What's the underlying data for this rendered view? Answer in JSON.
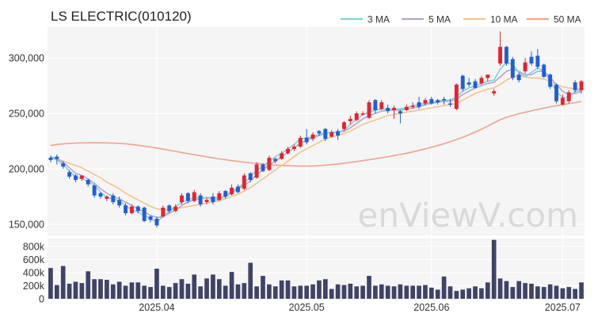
{
  "chart_data": {
    "type": "candlestick",
    "title": "LS ELECTRIC(010120)",
    "watermark": "enViewV.com",
    "legend": [
      {
        "label": "3 MA",
        "color": "#7fd3d4"
      },
      {
        "label": "5 MA",
        "color": "#b6a4cc"
      },
      {
        "label": "10 MA",
        "color": "#f2c48d"
      },
      {
        "label": "50 MA",
        "color": "#f2a28e"
      }
    ],
    "legend_position": "top-right",
    "colors": {
      "up": "#e8212e",
      "down": "#1f5fd6",
      "volume": "#3f4466",
      "plot_bg": "#f5f5f5"
    },
    "price_axis": {
      "ticks": [
        150000,
        200000,
        250000,
        300000
      ],
      "tick_labels": [
        "150,000",
        "200,000",
        "250,000",
        "300,000"
      ],
      "range": [
        140000,
        328000
      ]
    },
    "volume_axis": {
      "ticks": [
        0,
        200000,
        400000,
        600000,
        800000
      ],
      "tick_labels": [
        "0",
        "200k",
        "400k",
        "600k",
        "800k"
      ],
      "range": [
        0,
        920000
      ]
    },
    "x_axis": {
      "tick_labels": [
        "2025.04",
        "2025.05",
        "2025.06",
        "2025.07"
      ],
      "tick_sessions": [
        17,
        41,
        61,
        82
      ]
    },
    "sessions": 86,
    "candles": [
      [
        210000,
        212000,
        208000,
        206000
      ],
      [
        211000,
        213000,
        209000,
        204000
      ],
      [
        205000,
        207000,
        202000,
        200000
      ],
      [
        197000,
        199000,
        193000,
        191000
      ],
      [
        194000,
        195000,
        190000,
        188000
      ],
      [
        191000,
        192000,
        194000,
        189000
      ],
      [
        190000,
        191000,
        186000,
        184000
      ],
      [
        185000,
        186000,
        176000,
        174000
      ],
      [
        178000,
        179000,
        175000,
        173000
      ],
      [
        173000,
        176000,
        175000,
        171000
      ],
      [
        176000,
        178000,
        170000,
        168000
      ],
      [
        172000,
        175000,
        167000,
        165000
      ],
      [
        167000,
        169000,
        160000,
        158000
      ],
      [
        160000,
        168000,
        166000,
        159000
      ],
      [
        166000,
        167000,
        162000,
        160000
      ],
      [
        165000,
        166000,
        153000,
        152000
      ],
      [
        157000,
        158000,
        154000,
        152000
      ],
      [
        155000,
        157000,
        149000,
        147000
      ],
      [
        157000,
        167000,
        165000,
        156000
      ],
      [
        167000,
        168000,
        162000,
        160000
      ],
      [
        162000,
        168000,
        166000,
        161000
      ],
      [
        170000,
        178000,
        176000,
        168000
      ],
      [
        178000,
        179000,
        171000,
        169000
      ],
      [
        171000,
        181000,
        179000,
        170000
      ],
      [
        176000,
        178000,
        168000,
        166000
      ],
      [
        170000,
        174000,
        172000,
        168000
      ],
      [
        175000,
        178000,
        170000,
        168000
      ],
      [
        172000,
        180000,
        178000,
        171000
      ],
      [
        180000,
        181000,
        175000,
        173000
      ],
      [
        177000,
        186000,
        183000,
        176000
      ],
      [
        184000,
        186000,
        179000,
        178000
      ],
      [
        182000,
        196000,
        194000,
        181000
      ],
      [
        196000,
        197000,
        190000,
        188000
      ],
      [
        192000,
        206000,
        204000,
        191000
      ],
      [
        204000,
        205000,
        198000,
        197000
      ],
      [
        199000,
        212000,
        210000,
        198000
      ],
      [
        209000,
        210000,
        207000,
        205000
      ],
      [
        209000,
        216000,
        214000,
        208000
      ],
      [
        214000,
        220000,
        218000,
        213000
      ],
      [
        218000,
        222000,
        220000,
        216000
      ],
      [
        220000,
        230000,
        228000,
        219000
      ],
      [
        228000,
        236000,
        224000,
        222000
      ],
      [
        227000,
        233000,
        231000,
        225000
      ],
      [
        234000,
        235000,
        232000,
        230000
      ],
      [
        236000,
        237000,
        227000,
        225000
      ],
      [
        229000,
        235000,
        233000,
        228000
      ],
      [
        234000,
        236000,
        230000,
        226000
      ],
      [
        236000,
        243000,
        242000,
        234000
      ],
      [
        243000,
        248000,
        245000,
        240000
      ],
      [
        244000,
        252000,
        250000,
        243000
      ],
      [
        249000,
        252000,
        250000,
        248000
      ],
      [
        246000,
        262000,
        260000,
        245000
      ],
      [
        262000,
        263000,
        253000,
        250000
      ],
      [
        254000,
        262000,
        260000,
        253000
      ],
      [
        255000,
        258000,
        252000,
        250000
      ],
      [
        253000,
        257000,
        255000,
        245000
      ],
      [
        252000,
        253000,
        250000,
        241000
      ],
      [
        253000,
        258000,
        256000,
        252000
      ],
      [
        256000,
        260000,
        257000,
        254000
      ],
      [
        260000,
        265000,
        256000,
        254000
      ],
      [
        259000,
        264000,
        262000,
        257000
      ],
      [
        263000,
        265000,
        259000,
        258000
      ],
      [
        262000,
        263000,
        260000,
        258000
      ],
      [
        263000,
        265000,
        262000,
        258000
      ],
      [
        259000,
        263000,
        258000,
        256000
      ],
      [
        254000,
        277000,
        276000,
        253000
      ],
      [
        284000,
        285000,
        272000,
        270000
      ],
      [
        278000,
        282000,
        276000,
        274000
      ],
      [
        279000,
        281000,
        273000,
        272000
      ],
      [
        277000,
        284000,
        282000,
        276000
      ],
      [
        282000,
        285000,
        285000,
        279000
      ],
      [
        268000,
        272000,
        270000,
        266000
      ],
      [
        295000,
        324000,
        310000,
        293000
      ],
      [
        310000,
        311000,
        295000,
        293000
      ],
      [
        299000,
        301000,
        282000,
        280000
      ],
      [
        285000,
        287000,
        280000,
        278000
      ],
      [
        288000,
        300000,
        296000,
        286000
      ],
      [
        301000,
        306000,
        295000,
        293000
      ],
      [
        302000,
        308000,
        292000,
        290000
      ],
      [
        294000,
        295000,
        283000,
        282000
      ],
      [
        285000,
        286000,
        274000,
        272000
      ],
      [
        276000,
        277000,
        261000,
        259000
      ],
      [
        258000,
        267000,
        264000,
        257000
      ],
      [
        261000,
        271000,
        269000,
        259000
      ],
      [
        278000,
        280000,
        271000,
        269000
      ],
      [
        271000,
        280000,
        279000,
        268000
      ]
    ],
    "volume": [
      470000,
      210000,
      500000,
      230000,
      260000,
      240000,
      420000,
      300000,
      300000,
      290000,
      220000,
      260000,
      200000,
      250000,
      250000,
      200000,
      180000,
      460000,
      200000,
      180000,
      240000,
      300000,
      230000,
      370000,
      190000,
      310000,
      370000,
      300000,
      200000,
      410000,
      220000,
      240000,
      550000,
      190000,
      350000,
      220000,
      190000,
      280000,
      280000,
      190000,
      200000,
      200000,
      220000,
      280000,
      300000,
      150000,
      220000,
      210000,
      230000,
      190000,
      200000,
      350000,
      200000,
      220000,
      200000,
      190000,
      220000,
      200000,
      200000,
      200000,
      210000,
      170000,
      140000,
      340000,
      190000,
      120000,
      140000,
      160000,
      190000,
      160000,
      250000,
      900000,
      310000,
      270000,
      180000,
      270000,
      240000,
      230000,
      190000,
      180000,
      220000,
      200000,
      160000,
      180000,
      150000,
      250000
    ],
    "ma3": [
      210000,
      208000,
      204000,
      198000,
      193000,
      191000,
      189000,
      185000,
      179000,
      174000,
      173000,
      171000,
      167000,
      163000,
      161000,
      158000,
      155000,
      152000,
      157000,
      162000,
      166000,
      170000,
      172000,
      174000,
      174000,
      174000,
      172000,
      172000,
      176000,
      180000,
      183000,
      187000,
      193000,
      199000,
      202000,
      207000,
      211000,
      214000,
      218000,
      222000,
      227000,
      228000,
      229000,
      231000,
      232000,
      233000,
      233000,
      235000,
      240000,
      245000,
      249000,
      251000,
      253000,
      254000,
      254000,
      254000,
      254000,
      255000,
      257000,
      258000,
      259000,
      260000,
      261000,
      262000,
      262000,
      265000,
      270000,
      273000,
      275000,
      277000,
      279000,
      280000,
      290000,
      296000,
      294000,
      287000,
      283000,
      287000,
      291000,
      288000,
      279000,
      270000,
      264000,
      265000,
      270000,
      271000
    ],
    "ma5": [
      211000,
      209000,
      206000,
      201000,
      196000,
      194000,
      191000,
      187000,
      182000,
      178000,
      175000,
      173000,
      170000,
      167000,
      164000,
      161000,
      158000,
      156000,
      157000,
      160000,
      163000,
      167000,
      170000,
      172000,
      173000,
      174000,
      174000,
      174000,
      175000,
      178000,
      182000,
      185000,
      189000,
      195000,
      199000,
      204000,
      207000,
      211000,
      215000,
      219000,
      223000,
      226000,
      228000,
      230000,
      232000,
      233000,
      233000,
      234000,
      237000,
      241000,
      245000,
      248000,
      250000,
      252000,
      253000,
      253000,
      253000,
      254000,
      255000,
      256000,
      258000,
      259000,
      260000,
      261000,
      261000,
      263000,
      267000,
      270000,
      273000,
      275000,
      277000,
      278000,
      283000,
      288000,
      290000,
      288000,
      285000,
      285000,
      288000,
      288000,
      283000,
      276000,
      270000,
      267000,
      268000,
      270000
    ],
    "ma10": [
      210000,
      209000,
      207000,
      205000,
      203000,
      201000,
      198000,
      195000,
      192000,
      188000,
      185000,
      182000,
      178000,
      175000,
      172000,
      169000,
      166000,
      164000,
      163000,
      163000,
      164000,
      165000,
      166000,
      167000,
      168000,
      169000,
      170000,
      171000,
      173000,
      175000,
      177000,
      180000,
      183000,
      187000,
      191000,
      195000,
      199000,
      203000,
      207000,
      211000,
      215000,
      218000,
      221000,
      224000,
      227000,
      229000,
      230000,
      232000,
      234000,
      237000,
      240000,
      242000,
      244000,
      246000,
      248000,
      249000,
      250000,
      251000,
      252000,
      253000,
      254000,
      255000,
      256000,
      257000,
      258000,
      259000,
      262000,
      265000,
      268000,
      270000,
      272000,
      273000,
      276000,
      280000,
      283000,
      284000,
      283000,
      282000,
      282000,
      281000,
      279000,
      276000,
      274000,
      273000,
      272000,
      272000
    ],
    "ma50": [
      221000,
      222000,
      222500,
      223000,
      223200,
      223400,
      223500,
      223500,
      223500,
      223400,
      223200,
      223000,
      222600,
      222000,
      221300,
      220500,
      219700,
      218800,
      217800,
      216800,
      215800,
      214800,
      213800,
      212800,
      211800,
      210800,
      209900,
      209000,
      208200,
      207400,
      206700,
      206000,
      205400,
      204800,
      204300,
      203800,
      203400,
      203100,
      202800,
      202600,
      202500,
      202500,
      202600,
      202900,
      203300,
      203800,
      204400,
      205100,
      205800,
      206600,
      207400,
      208200,
      209100,
      210000,
      211000,
      212000,
      213000,
      214100,
      215300,
      216600,
      218000,
      219500,
      221000,
      222700,
      224500,
      226500,
      228500,
      230800,
      233200,
      235800,
      238500,
      241500,
      244400,
      246500,
      248200,
      249700,
      251000,
      252300,
      253600,
      254800,
      256000,
      257000,
      257900,
      258800,
      259700,
      260800
    ]
  }
}
